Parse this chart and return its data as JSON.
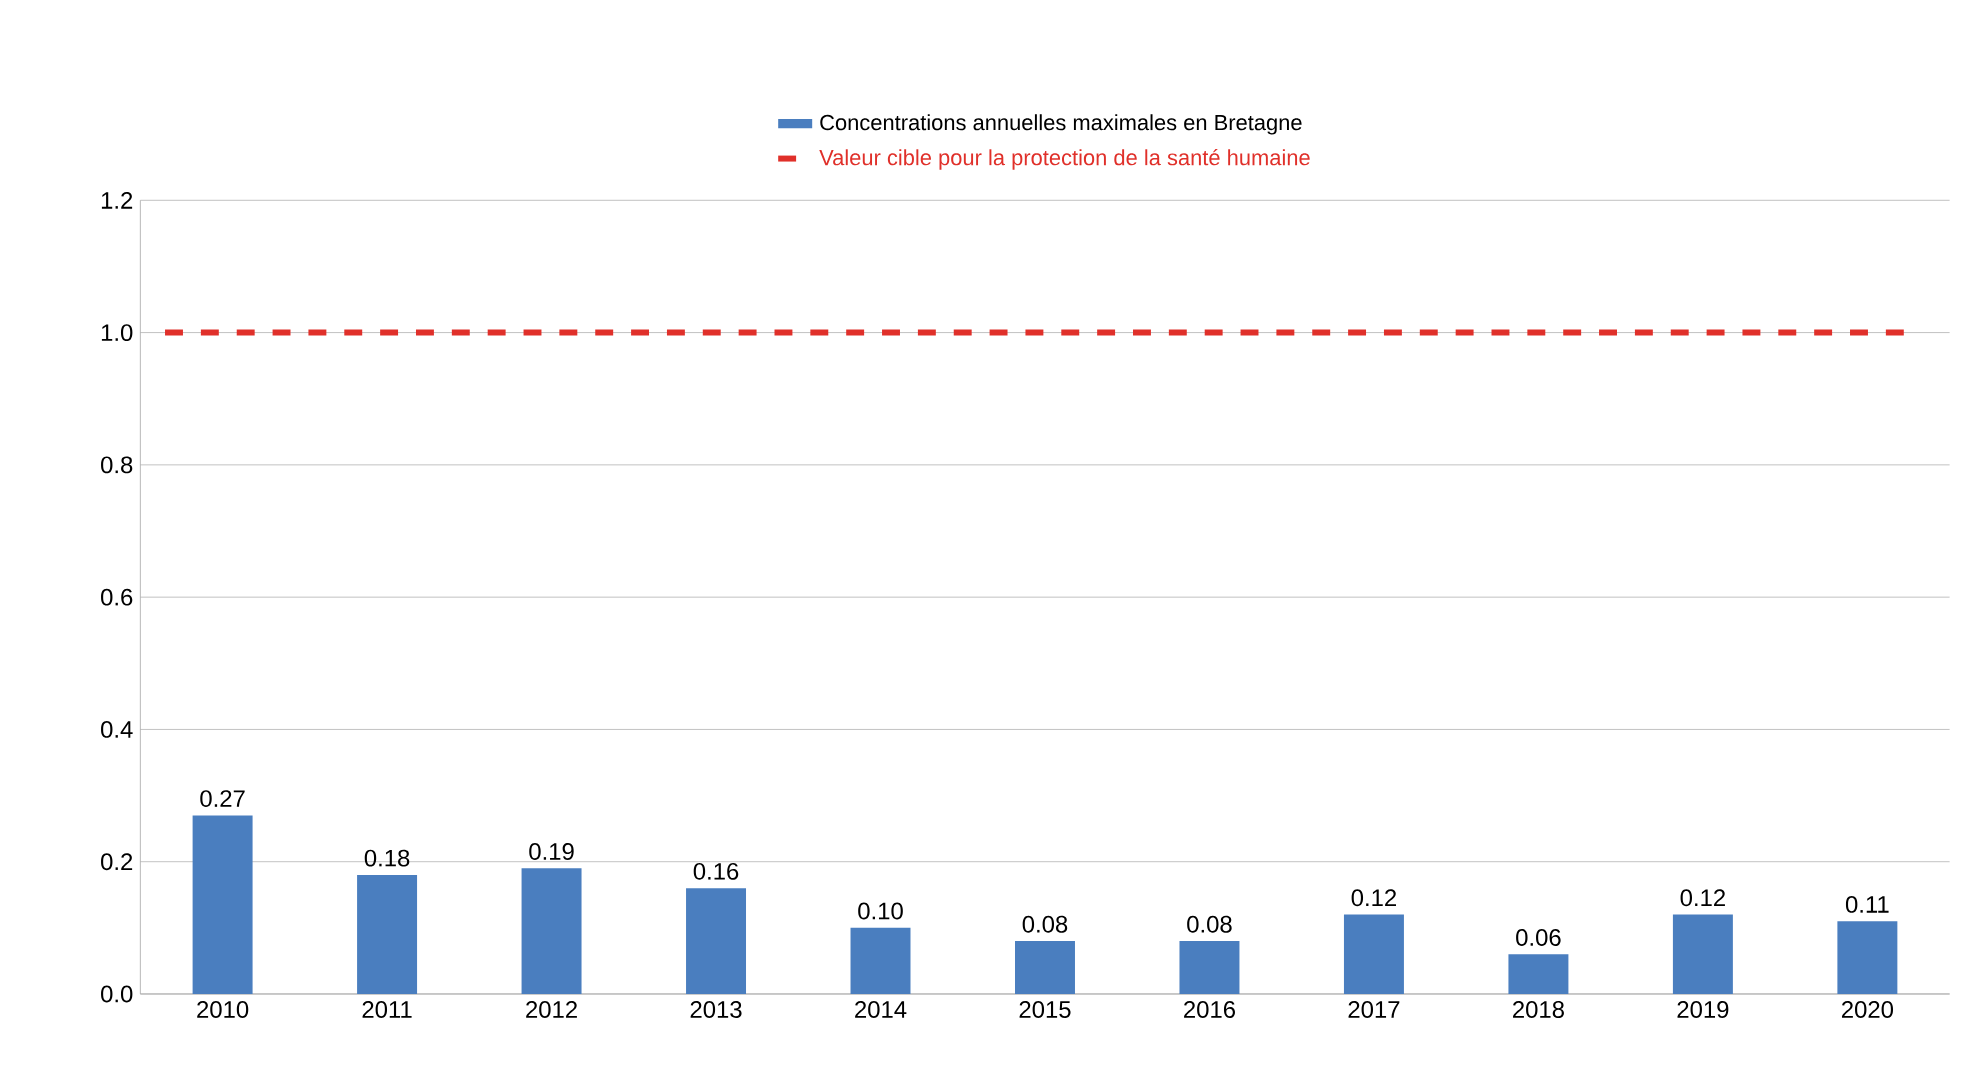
{
  "chart_data": {
    "type": "bar",
    "categories": [
      "2010",
      "2011",
      "2012",
      "2013",
      "2014",
      "2015",
      "2016",
      "2017",
      "2018",
      "2019",
      "2020"
    ],
    "series": [
      {
        "name": "Concentrations annuelles maximales en Bretagne",
        "color": "#4a7ebf",
        "values": [
          0.27,
          0.18,
          0.19,
          0.16,
          0.1,
          0.08,
          0.08,
          0.12,
          0.06,
          0.12,
          0.11
        ],
        "value_labels": [
          "0.27",
          "0.18",
          "0.19",
          "0.16",
          "0.10",
          "0.08",
          "0.08",
          "0.12",
          "0.06",
          "0.12",
          "0.11"
        ]
      }
    ],
    "ref_lines": [
      {
        "axis": "y",
        "value": 1.0,
        "label": "Valeur cible pour la protection de la santé humaine",
        "color": "#e0302a",
        "line_style": "dashed"
      }
    ],
    "ylim": [
      0,
      1.2
    ],
    "yticks": [
      {
        "value": 0,
        "label": "0.0"
      },
      {
        "value": 0.2,
        "label": "0.2"
      },
      {
        "value": 0.4,
        "label": "0.4"
      },
      {
        "value": 0.6,
        "label": "0.6"
      },
      {
        "value": 0.8,
        "label": "0.8"
      },
      {
        "value": 1.0,
        "label": "1.0"
      },
      {
        "value": 1.2,
        "label": "1.2"
      }
    ],
    "grid": "y",
    "legend": "top"
  }
}
